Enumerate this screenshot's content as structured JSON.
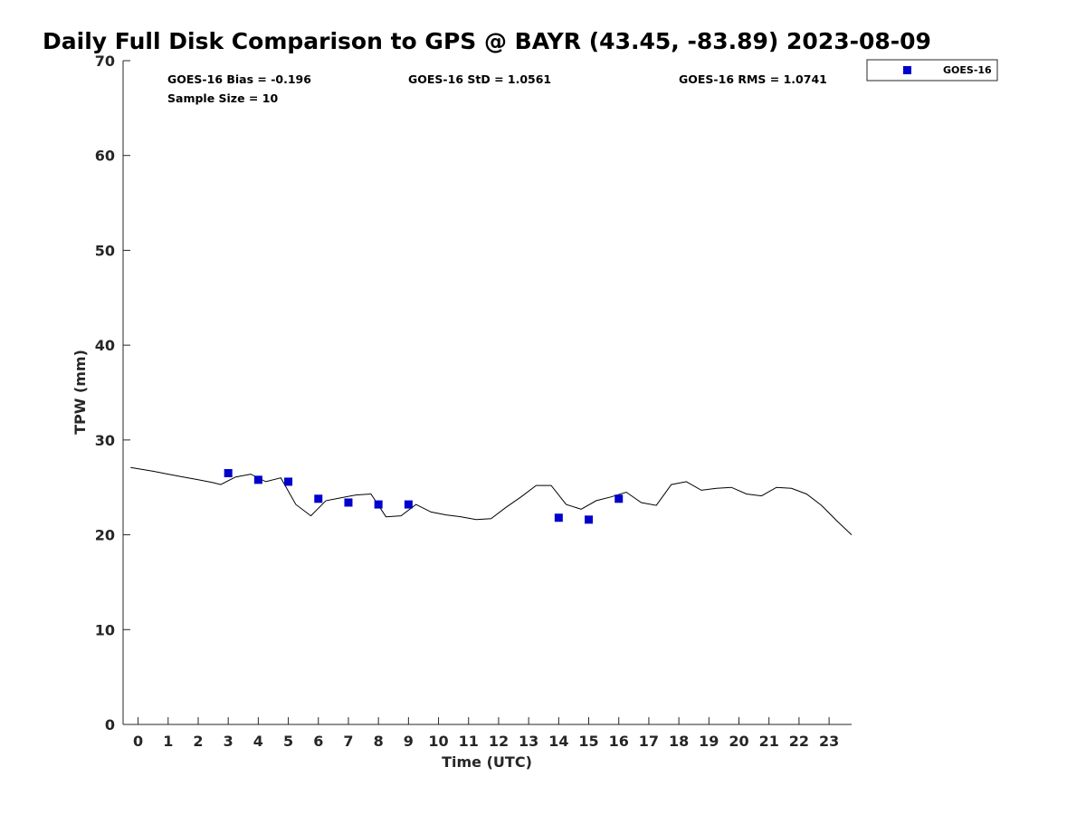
{
  "chart_data": {
    "type": "scatter",
    "title": "Daily Full Disk Comparison to GPS @ BAYR (43.45, -83.89) 2023-08-09",
    "xlabel": "Time (UTC)",
    "ylabel": "TPW (mm)",
    "xlim": [
      -0.5,
      23.75
    ],
    "ylim": [
      0,
      70
    ],
    "x_ticks": [
      "0",
      "1",
      "2",
      "3",
      "4",
      "5",
      "6",
      "7",
      "8",
      "9",
      "10",
      "11",
      "12",
      "13",
      "14",
      "15",
      "16",
      "17",
      "18",
      "19",
      "20",
      "21",
      "22",
      "23"
    ],
    "y_ticks": [
      "0",
      "10",
      "20",
      "30",
      "40",
      "50",
      "60",
      "70"
    ],
    "grid": false,
    "legend": {
      "position": "top-right-outside",
      "entries": [
        "GOES-16"
      ]
    },
    "stats": {
      "bias": "GOES-16 Bias = -0.196",
      "std": "GOES-16 StD = 1.0561",
      "rms": "GOES-16 RMS = 1.0741",
      "sample": "Sample Size = 10"
    },
    "series": [
      {
        "name": "GOES-16",
        "kind": "scatter",
        "marker": "square",
        "color": "#0000cc",
        "x": [
          3,
          4,
          5,
          6,
          7,
          8,
          9,
          14,
          15,
          16
        ],
        "y": [
          26.5,
          25.8,
          25.6,
          23.8,
          23.4,
          23.2,
          23.2,
          21.8,
          21.6,
          23.8
        ]
      },
      {
        "kind": "line",
        "color": "#000000",
        "x": [
          -0.25,
          0.5,
          1.0,
          1.5,
          2.0,
          2.5,
          2.75,
          3.25,
          3.75,
          4.25,
          4.75,
          5.25,
          5.75,
          6.25,
          6.75,
          7.25,
          7.75,
          8.25,
          8.75,
          9.25,
          9.75,
          10.25,
          10.75,
          11.25,
          11.75,
          12.25,
          12.75,
          13.25,
          13.75,
          14.25,
          14.75,
          15.25,
          15.75,
          16.25,
          16.75,
          17.25,
          17.75,
          18.25,
          18.75,
          19.25,
          19.75,
          20.25,
          20.75,
          21.25,
          21.75,
          22.25,
          22.75,
          23.25,
          23.75
        ],
        "y": [
          27.1,
          26.7,
          26.4,
          26.1,
          25.8,
          25.5,
          25.3,
          26.1,
          26.4,
          25.6,
          26.0,
          23.2,
          22.0,
          23.6,
          23.9,
          24.2,
          24.3,
          21.9,
          22.0,
          23.2,
          22.4,
          22.1,
          21.9,
          21.6,
          21.7,
          22.9,
          24.0,
          25.2,
          25.2,
          23.2,
          22.7,
          23.6,
          24.0,
          24.5,
          23.4,
          23.1,
          25.3,
          25.6,
          24.7,
          24.9,
          25.0,
          24.3,
          24.1,
          25.0,
          24.9,
          24.3,
          23.1,
          21.5,
          20.0
        ]
      }
    ]
  }
}
